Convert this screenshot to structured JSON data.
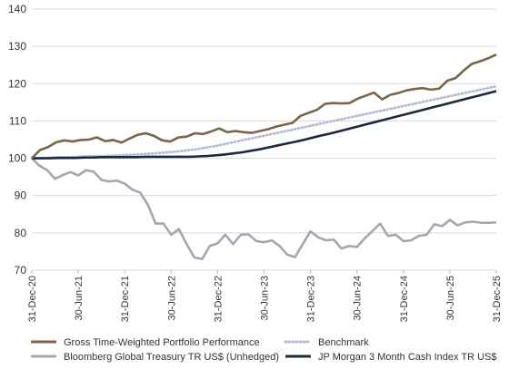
{
  "chart_data": {
    "type": "line",
    "ylim": [
      70,
      140
    ],
    "yticks": [
      "70",
      "80",
      "90",
      "100",
      "110",
      "120",
      "130",
      "140"
    ],
    "x_ticks": [
      "31-Dec-20",
      "30-Jun-21",
      "31-Dec-21",
      "30-Jun-22",
      "31-Dec-22",
      "30-Jun-23",
      "31-Dec-23",
      "30-Jun-24",
      "31-Dec-24",
      "30-Jun-25",
      "31-Dec-25"
    ],
    "x_start": "31-Dec-20",
    "x_end": "31-Dec-25",
    "grid": "horizontal",
    "legend_position": "bottom",
    "series": [
      {
        "name": "Gross Time-Weighted Portfolio Performance",
        "color": "#7b6547",
        "style": "solid",
        "values": [
          100,
          102.2,
          103,
          104.3,
          104.8,
          104.5,
          104.9,
          105,
          105.6,
          104.6,
          104.9,
          104.2,
          105.3,
          106.3,
          106.7,
          106,
          104.8,
          104.5,
          105.6,
          105.8,
          106.7,
          106.5,
          107.2,
          108,
          107,
          107.3,
          107,
          106.8,
          107.3,
          107.8,
          108.5,
          109,
          109.5,
          111.4,
          112.2,
          113,
          114.6,
          114.8,
          114.7,
          114.8,
          116,
          116.8,
          117.6,
          115.8,
          117,
          117.5,
          118.2,
          118.6,
          118.8,
          118.4,
          118.7,
          120.8,
          121.5,
          123.5,
          125.3,
          126,
          126.8,
          127.8
        ]
      },
      {
        "name": "Benchmark",
        "color": "#b7b9d2",
        "style": "dotted",
        "values": [
          100,
          100.1,
          100.2,
          100.3,
          100.3,
          100.4,
          100.5,
          100.6,
          100.6,
          100.7,
          100.8,
          100.9,
          101,
          101.2,
          101.3,
          101.5,
          101.7,
          101.9,
          102.2,
          102.5,
          102.9,
          103.3,
          103.8,
          104.3,
          104.8,
          105.3,
          105.8,
          106.3,
          106.8,
          107.3,
          107.8,
          108.3,
          108.8,
          109.3,
          109.8,
          110.3,
          110.8,
          111.3,
          111.8,
          112.3,
          112.8,
          113.3,
          113.8,
          114.3,
          114.8,
          115.3,
          115.8,
          116.3,
          116.8,
          117.3,
          117.8,
          118.3,
          118.8,
          119.3
        ]
      },
      {
        "name": "Bloomberg Global Treasury TR US$ (Unhedged)",
        "color": "#a4a6b3",
        "style": "solid",
        "values": [
          100,
          98,
          96.8,
          94.5,
          95.5,
          96.3,
          95.4,
          96.8,
          96.4,
          94.2,
          93.8,
          94,
          93.2,
          91.6,
          90.8,
          87.5,
          82.5,
          82.5,
          79.5,
          81,
          77,
          73.4,
          73,
          76.5,
          77.2,
          79.5,
          77,
          79.5,
          79.6,
          77.8,
          77.5,
          78,
          76.5,
          74.2,
          73.5,
          77,
          80.4,
          78.8,
          78,
          78.2,
          75.8,
          76.5,
          76.2,
          78.5,
          80.5,
          82.5,
          79.2,
          79.5,
          77.8,
          78,
          79.2,
          79.5,
          82.3,
          81.8,
          83.5,
          82,
          82.8,
          83,
          82.7,
          82.7,
          82.8
        ]
      },
      {
        "name": "JP Morgan 3 Month Cash Index TR US$",
        "color": "#1b2744",
        "style": "solid",
        "values": [
          100,
          100,
          100,
          100.1,
          100.1,
          100.1,
          100.2,
          100.2,
          100.3,
          100.3,
          100.3,
          100.3,
          100.3,
          100.4,
          100.4,
          100.4,
          100.4,
          100.4,
          100.4,
          100.5,
          100.6,
          100.8,
          101,
          101.3,
          101.6,
          102,
          102.4,
          102.9,
          103.4,
          103.9,
          104.4,
          104.9,
          105.5,
          106.1,
          106.6,
          107.2,
          107.8,
          108.4,
          109,
          109.6,
          110.2,
          110.8,
          111.4,
          112,
          112.6,
          113.2,
          113.8,
          114.4,
          115,
          115.6,
          116.2,
          116.8,
          117.4,
          118
        ]
      }
    ]
  }
}
